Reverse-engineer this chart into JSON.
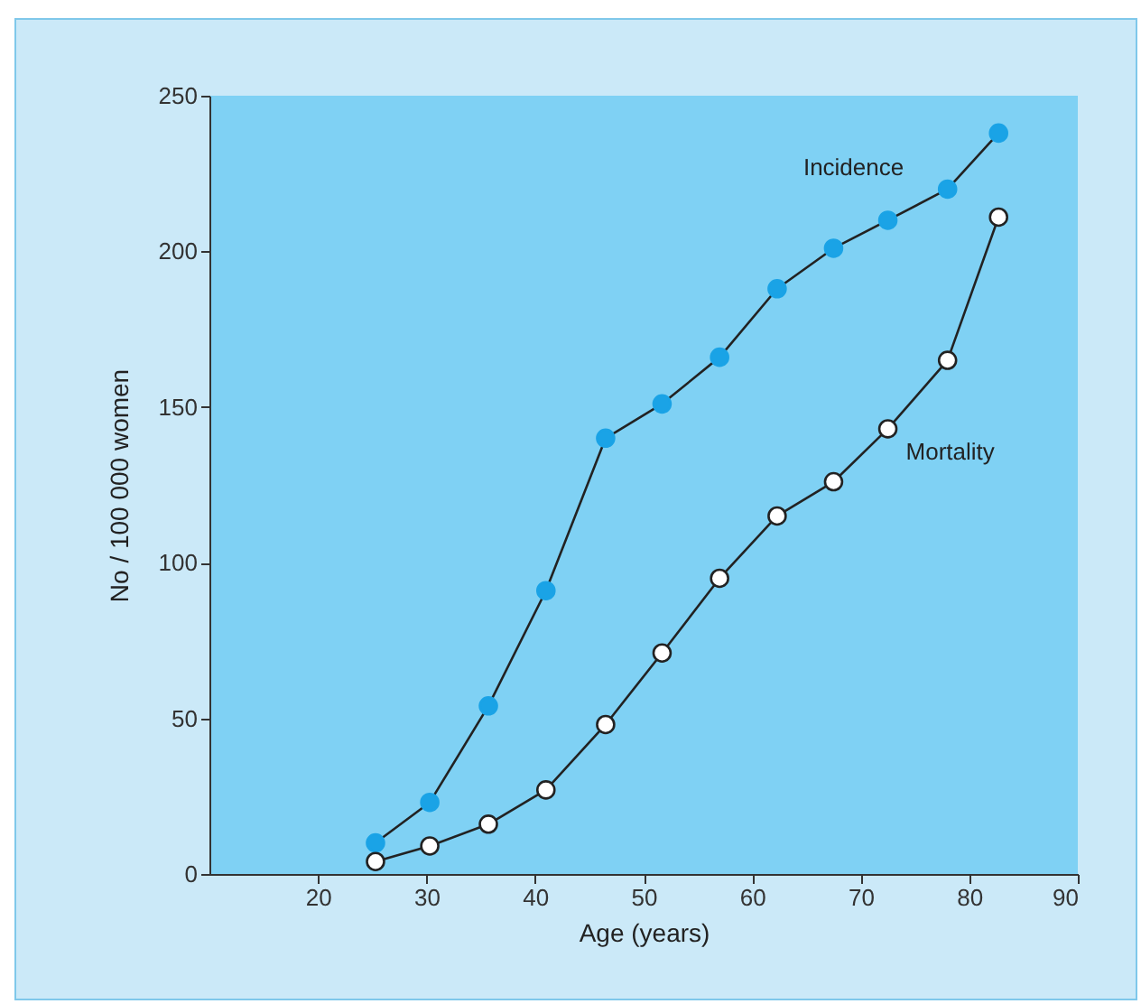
{
  "chart_data": {
    "type": "line",
    "xlabel": "Age (years)",
    "ylabel": "No / 100 000 women",
    "xlim": [
      10,
      90
    ],
    "xticks": [
      20,
      30,
      40,
      50,
      60,
      70,
      80,
      90
    ],
    "ylim": [
      0,
      250
    ],
    "yticks": [
      0,
      50,
      100,
      150,
      200,
      250
    ],
    "grid": false,
    "marker": "circle",
    "line_style": "solid",
    "series": [
      {
        "name": "Incidence",
        "color": "#1aa3e6",
        "x": [
          25.3,
          30.3,
          35.7,
          41,
          46.5,
          51.7,
          57,
          62.3,
          67.5,
          72.5,
          78,
          82.7
        ],
        "values": [
          10,
          23,
          54,
          91,
          140,
          151,
          166,
          188,
          201,
          210,
          220,
          238
        ]
      },
      {
        "name": "Mortality",
        "color": "#ffffff",
        "x": [
          25.3,
          30.3,
          35.7,
          41,
          46.5,
          51.7,
          57,
          62.3,
          67.5,
          72.5,
          78,
          82.7
        ],
        "values": [
          4,
          9,
          16,
          27,
          48,
          71,
          95,
          115,
          126,
          143,
          165,
          211
        ]
      }
    ]
  }
}
